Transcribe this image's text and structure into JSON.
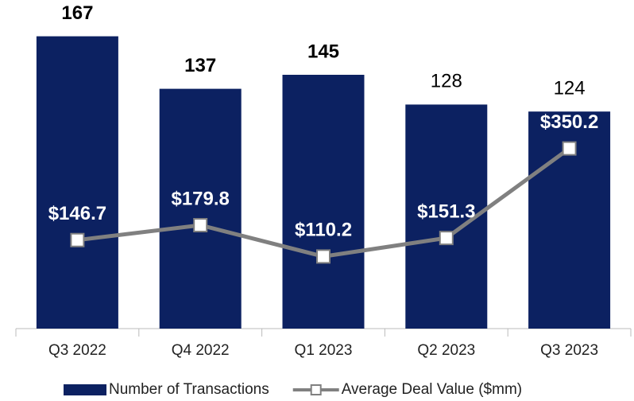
{
  "chart_data": {
    "type": "bar-line",
    "categories": [
      "Q3 2022",
      "Q4 2022",
      "Q1 2023",
      "Q2 2023",
      "Q3 2023"
    ],
    "series": [
      {
        "name": "Number of Transactions",
        "type": "bar",
        "color": "#0c2161",
        "values": [
          167,
          137,
          145,
          128,
          124
        ]
      },
      {
        "name": "Average Deal Value ($mm)",
        "type": "line",
        "axis": "y2",
        "color": "#808080",
        "values": [
          146.7,
          179.8,
          110.2,
          151.3,
          350.2
        ],
        "value_labels": [
          "$146.7",
          "$179.8",
          "$110.2",
          "$151.3",
          "$350.2"
        ]
      }
    ],
    "ylim": [
      0,
      180
    ],
    "y2lim": [
      -50,
      650
    ],
    "grid": false,
    "legend": "bottom"
  }
}
